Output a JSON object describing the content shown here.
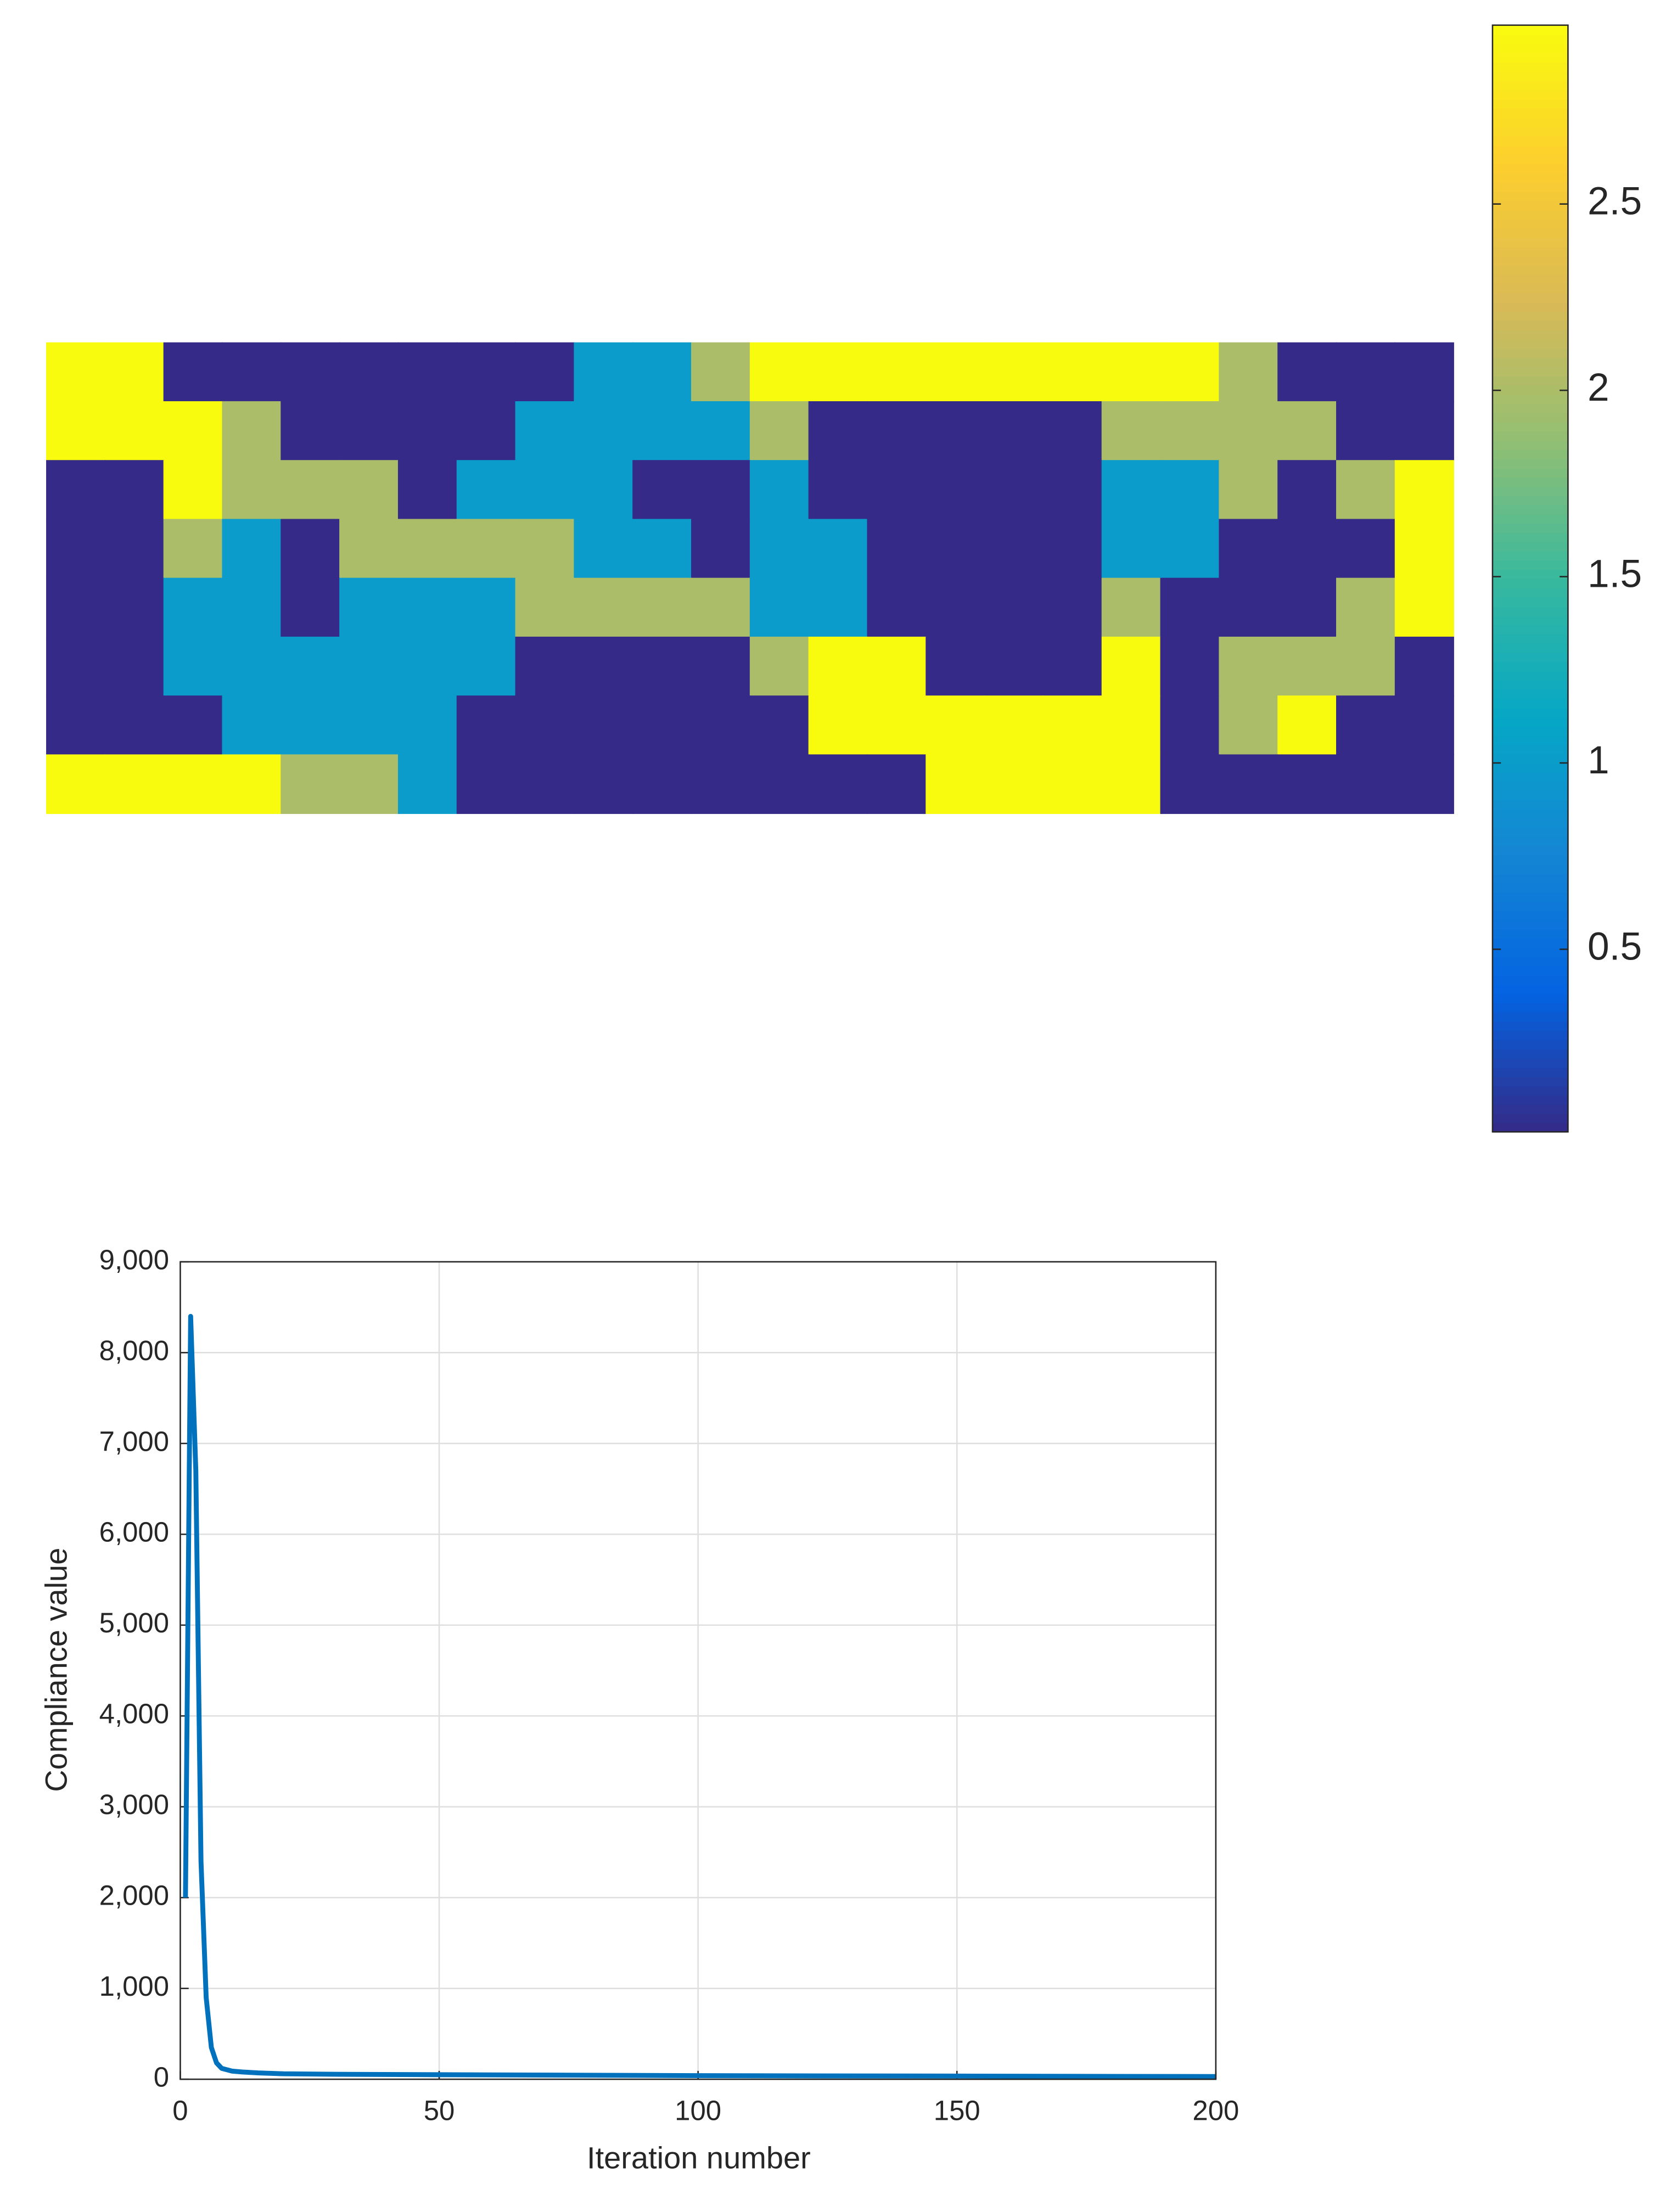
{
  "chart_data": [
    {
      "type": "heatmap",
      "clim": [
        0.01,
        2.98
      ],
      "colorbar_ticks": [
        0.5,
        1,
        1.5,
        2,
        2.5
      ],
      "colormap": [
        "#352a87",
        "#0363e1",
        "#1485d4",
        "#06a7c6",
        "#38b99e",
        "#92bf73",
        "#d9ba56",
        "#fcce2e",
        "#f9fb0e"
      ],
      "z": [
        [
          2.98,
          2.98,
          0.01,
          0.01,
          0.01,
          0.01,
          0.01,
          0.01,
          0.01,
          1,
          1,
          2,
          2.98,
          2.98,
          2.98,
          2.98,
          2.98,
          2.98,
          2.98,
          2.98,
          2,
          0.01,
          0.01,
          0.01
        ],
        [
          2.98,
          2.98,
          2.98,
          2,
          0.01,
          0.01,
          0.01,
          0.01,
          1,
          1,
          1,
          1,
          2,
          0.01,
          0.01,
          0.01,
          0.01,
          0.01,
          2,
          2,
          2,
          2,
          0.01,
          0.01
        ],
        [
          0.01,
          0.01,
          2.98,
          2,
          2,
          2,
          0.01,
          1,
          1,
          1,
          0.01,
          0.01,
          1,
          0.01,
          0.01,
          0.01,
          0.01,
          0.01,
          1,
          1,
          2,
          0.01,
          2,
          2.98
        ],
        [
          0.01,
          0.01,
          2,
          1,
          0.01,
          2,
          2,
          2,
          2,
          1,
          1,
          0.01,
          1,
          1,
          0.01,
          0.01,
          0.01,
          0.01,
          1,
          1,
          0.01,
          0.01,
          0.01,
          2.98
        ],
        [
          0.01,
          0.01,
          1,
          1,
          0.01,
          1,
          1,
          1,
          2,
          2,
          2,
          2,
          1,
          1,
          0.01,
          0.01,
          0.01,
          0.01,
          2,
          0.01,
          0.01,
          0.01,
          2,
          2.98
        ],
        [
          0.01,
          0.01,
          1,
          1,
          1,
          1,
          1,
          1,
          0.01,
          0.01,
          0.01,
          0.01,
          2,
          2.98,
          2.98,
          0.01,
          0.01,
          0.01,
          2.98,
          0.01,
          2,
          2,
          2,
          0.01
        ],
        [
          0.01,
          0.01,
          0.01,
          1,
          1,
          1,
          1,
          0.01,
          0.01,
          0.01,
          0.01,
          0.01,
          0.01,
          2.98,
          2.98,
          2.98,
          2.98,
          2.98,
          2.98,
          0.01,
          2,
          2.98,
          0.01,
          0.01
        ],
        [
          2.98,
          2.98,
          2.98,
          2.98,
          2,
          2,
          1,
          0.01,
          0.01,
          0.01,
          0.01,
          0.01,
          0.01,
          0.01,
          0.01,
          2.98,
          2.98,
          2.98,
          2.98,
          0.01,
          0.01,
          0.01,
          0.01,
          0.01
        ]
      ]
    },
    {
      "type": "line",
      "x": [
        1,
        2,
        3,
        4,
        5,
        6,
        7,
        8,
        10,
        12,
        15,
        20,
        30,
        50,
        75,
        100,
        125,
        150,
        175,
        200
      ],
      "values": [
        2000,
        8400,
        6700,
        2400,
        900,
        350,
        180,
        120,
        90,
        80,
        70,
        60,
        55,
        50,
        45,
        40,
        37,
        35,
        32,
        30
      ],
      "color": "#0072bd",
      "xlim": [
        0,
        200
      ],
      "xticks": [
        0,
        50,
        100,
        150,
        200
      ],
      "ylim": [
        0,
        9000
      ],
      "yticks": [
        0,
        {
          "value": 1000,
          "label": "1,000"
        },
        {
          "value": 2000,
          "label": "2,000"
        },
        {
          "value": 3000,
          "label": "3,000"
        },
        {
          "value": 4000,
          "label": "4,000"
        },
        {
          "value": 5000,
          "label": "5,000"
        },
        {
          "value": 6000,
          "label": "6,000"
        },
        {
          "value": 7000,
          "label": "7,000"
        },
        {
          "value": 8000,
          "label": "8,000"
        },
        {
          "value": 9000,
          "label": "9,000"
        }
      ],
      "xlabel": "Iteration number",
      "ylabel": "Compliance value",
      "grid": true
    }
  ]
}
